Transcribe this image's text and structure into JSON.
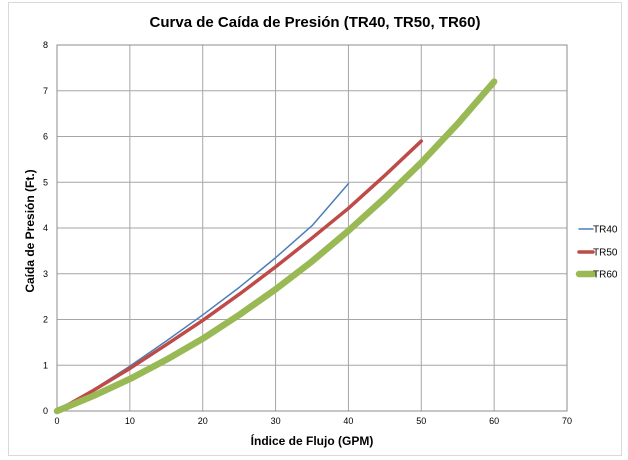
{
  "chart_data": {
    "type": "line",
    "title": "Curva de Caída de Presión (TR40, TR50, TR60)",
    "xlabel": "Índice de Flujo (GPM)",
    "ylabel": "Caída de Presión (Ft.)",
    "xlim": [
      0,
      70
    ],
    "ylim": [
      0,
      8
    ],
    "xticks": [
      0,
      10,
      20,
      30,
      40,
      50,
      60,
      70
    ],
    "yticks": [
      0,
      1,
      2,
      3,
      4,
      5,
      6,
      7,
      8
    ],
    "grid": true,
    "legend_position": "right",
    "series": [
      {
        "name": "TR40",
        "color": "#4a7ebb",
        "x": [
          0,
          5,
          10,
          15,
          20,
          25,
          30,
          35,
          40
        ],
        "y": [
          0,
          0.47,
          0.98,
          1.53,
          2.1,
          2.7,
          3.35,
          4.05,
          4.97
        ]
      },
      {
        "name": "TR50",
        "color": "#be4b48",
        "x": [
          0,
          5,
          10,
          15,
          20,
          25,
          30,
          35,
          40,
          45,
          50
        ],
        "y": [
          0,
          0.45,
          0.93,
          1.45,
          1.98,
          2.55,
          3.15,
          3.78,
          4.43,
          5.15,
          5.9
        ]
      },
      {
        "name": "TR60",
        "color": "#98b954",
        "x": [
          0,
          5,
          10,
          15,
          20,
          25,
          30,
          35,
          40,
          45,
          50,
          55,
          60
        ],
        "y": [
          0,
          0.33,
          0.7,
          1.12,
          1.58,
          2.1,
          2.66,
          3.27,
          3.94,
          4.66,
          5.43,
          6.28,
          7.2
        ]
      }
    ]
  }
}
